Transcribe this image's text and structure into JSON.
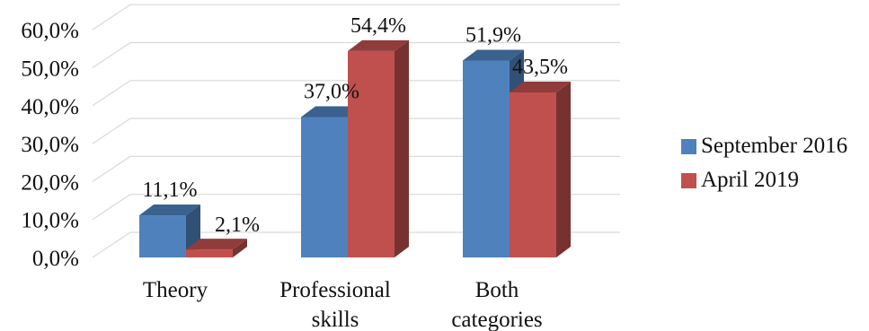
{
  "chart_data": {
    "type": "bar",
    "style": "3d-clustered-column",
    "categories": [
      [
        "Theory"
      ],
      [
        "Professional",
        "skills"
      ],
      [
        "Both",
        "categories"
      ]
    ],
    "series": [
      {
        "name": "September 2016",
        "color": "#4F81BD",
        "values": [
          11.1,
          37.0,
          51.9
        ],
        "labels": [
          "11,1%",
          "37,0%",
          "51,9%"
        ]
      },
      {
        "name": "April 2019",
        "color": "#C0504D",
        "values": [
          2.1,
          54.4,
          43.5
        ],
        "labels": [
          "2,1%",
          "54,4%",
          "43,5%"
        ]
      }
    ],
    "y_ticks": [
      "0,0%",
      "10,0%",
      "20,0%",
      "30,0%",
      "40,0%",
      "50,0%",
      "60,0%"
    ],
    "ylim": [
      0,
      60
    ],
    "grid": true,
    "legend_position": "right"
  }
}
